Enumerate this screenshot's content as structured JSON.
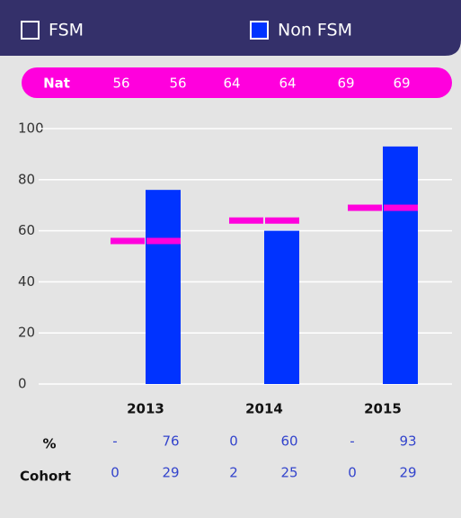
{
  "chart_data": {
    "type": "bar",
    "categories": [
      "2013",
      "2014",
      "2015"
    ],
    "series": [
      {
        "name": "FSM",
        "color": "#34306a",
        "values": [
          null,
          0,
          null
        ],
        "value_labels": [
          "-",
          "0",
          "-"
        ],
        "cohort": [
          0,
          2,
          0
        ]
      },
      {
        "name": "Non FSM",
        "color": "#0033ff",
        "values": [
          76,
          60,
          93
        ],
        "cohort": [
          29,
          25,
          29
        ]
      }
    ],
    "national": {
      "label": "Nat",
      "color": "#ff00dd",
      "values": [
        56,
        56,
        64,
        64,
        69,
        69
      ]
    },
    "rows": {
      "percent": "%",
      "cohort": "Cohort"
    },
    "ylim": [
      0,
      100
    ],
    "yticks": [
      0,
      20,
      40,
      60,
      80,
      100
    ],
    "grid": true
  }
}
